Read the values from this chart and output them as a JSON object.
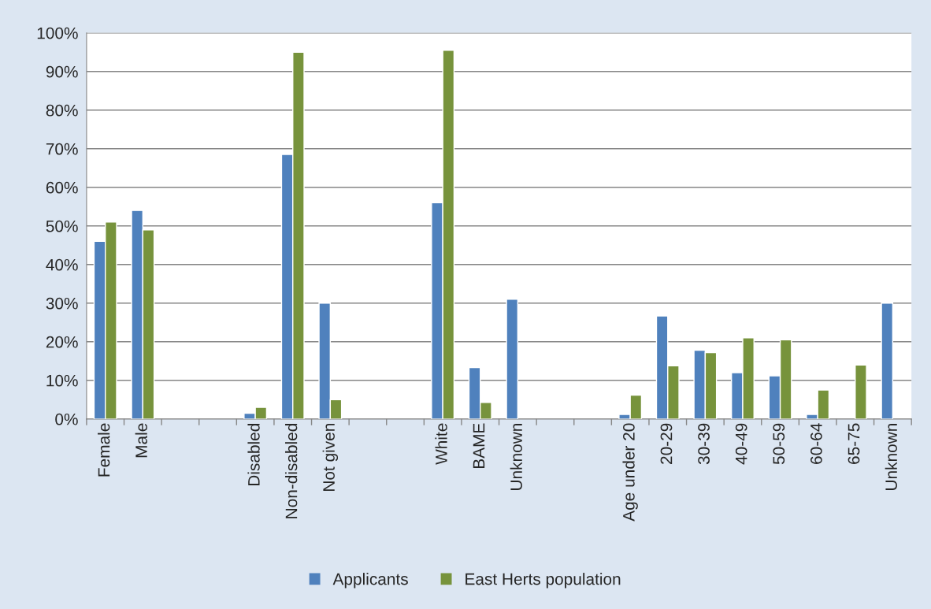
{
  "chart_data": {
    "type": "bar",
    "categories": [
      "Female",
      "Male",
      null,
      null,
      "Disabled",
      "Non-disabled",
      "Not given",
      null,
      null,
      "White",
      "BAME",
      "Unknown",
      null,
      null,
      "Age under 20",
      "20-29",
      "30-39",
      "40-49",
      "50-59",
      "60-64",
      "65-75",
      "Unknown"
    ],
    "series": [
      {
        "name": "Applicants",
        "color": "#4f81bd",
        "values": [
          46,
          54,
          null,
          null,
          1.5,
          68.5,
          30,
          null,
          null,
          56,
          13.3,
          31,
          null,
          null,
          1.2,
          26.7,
          17.8,
          12,
          11.2,
          1.2,
          null,
          30
        ]
      },
      {
        "name": "East Herts population",
        "color": "#77933c",
        "values": [
          51,
          49,
          null,
          null,
          3,
          95,
          5,
          null,
          null,
          95.5,
          4.3,
          null,
          null,
          null,
          6.2,
          13.8,
          17.2,
          21,
          20.5,
          7.5,
          14,
          null
        ]
      }
    ],
    "ylim": [
      0,
      100
    ],
    "yticks": [
      {
        "value": 0,
        "label": "0%"
      },
      {
        "value": 10,
        "label": "10%"
      },
      {
        "value": 20,
        "label": "20%"
      },
      {
        "value": 30,
        "label": "30%"
      },
      {
        "value": 40,
        "label": "40%"
      },
      {
        "value": 50,
        "label": "50%"
      },
      {
        "value": 60,
        "label": "60%"
      },
      {
        "value": 70,
        "label": "70%"
      },
      {
        "value": 80,
        "label": "80%"
      },
      {
        "value": 90,
        "label": "90%"
      },
      {
        "value": 100,
        "label": "100%"
      }
    ],
    "grid": "y",
    "legend": "bottom"
  }
}
